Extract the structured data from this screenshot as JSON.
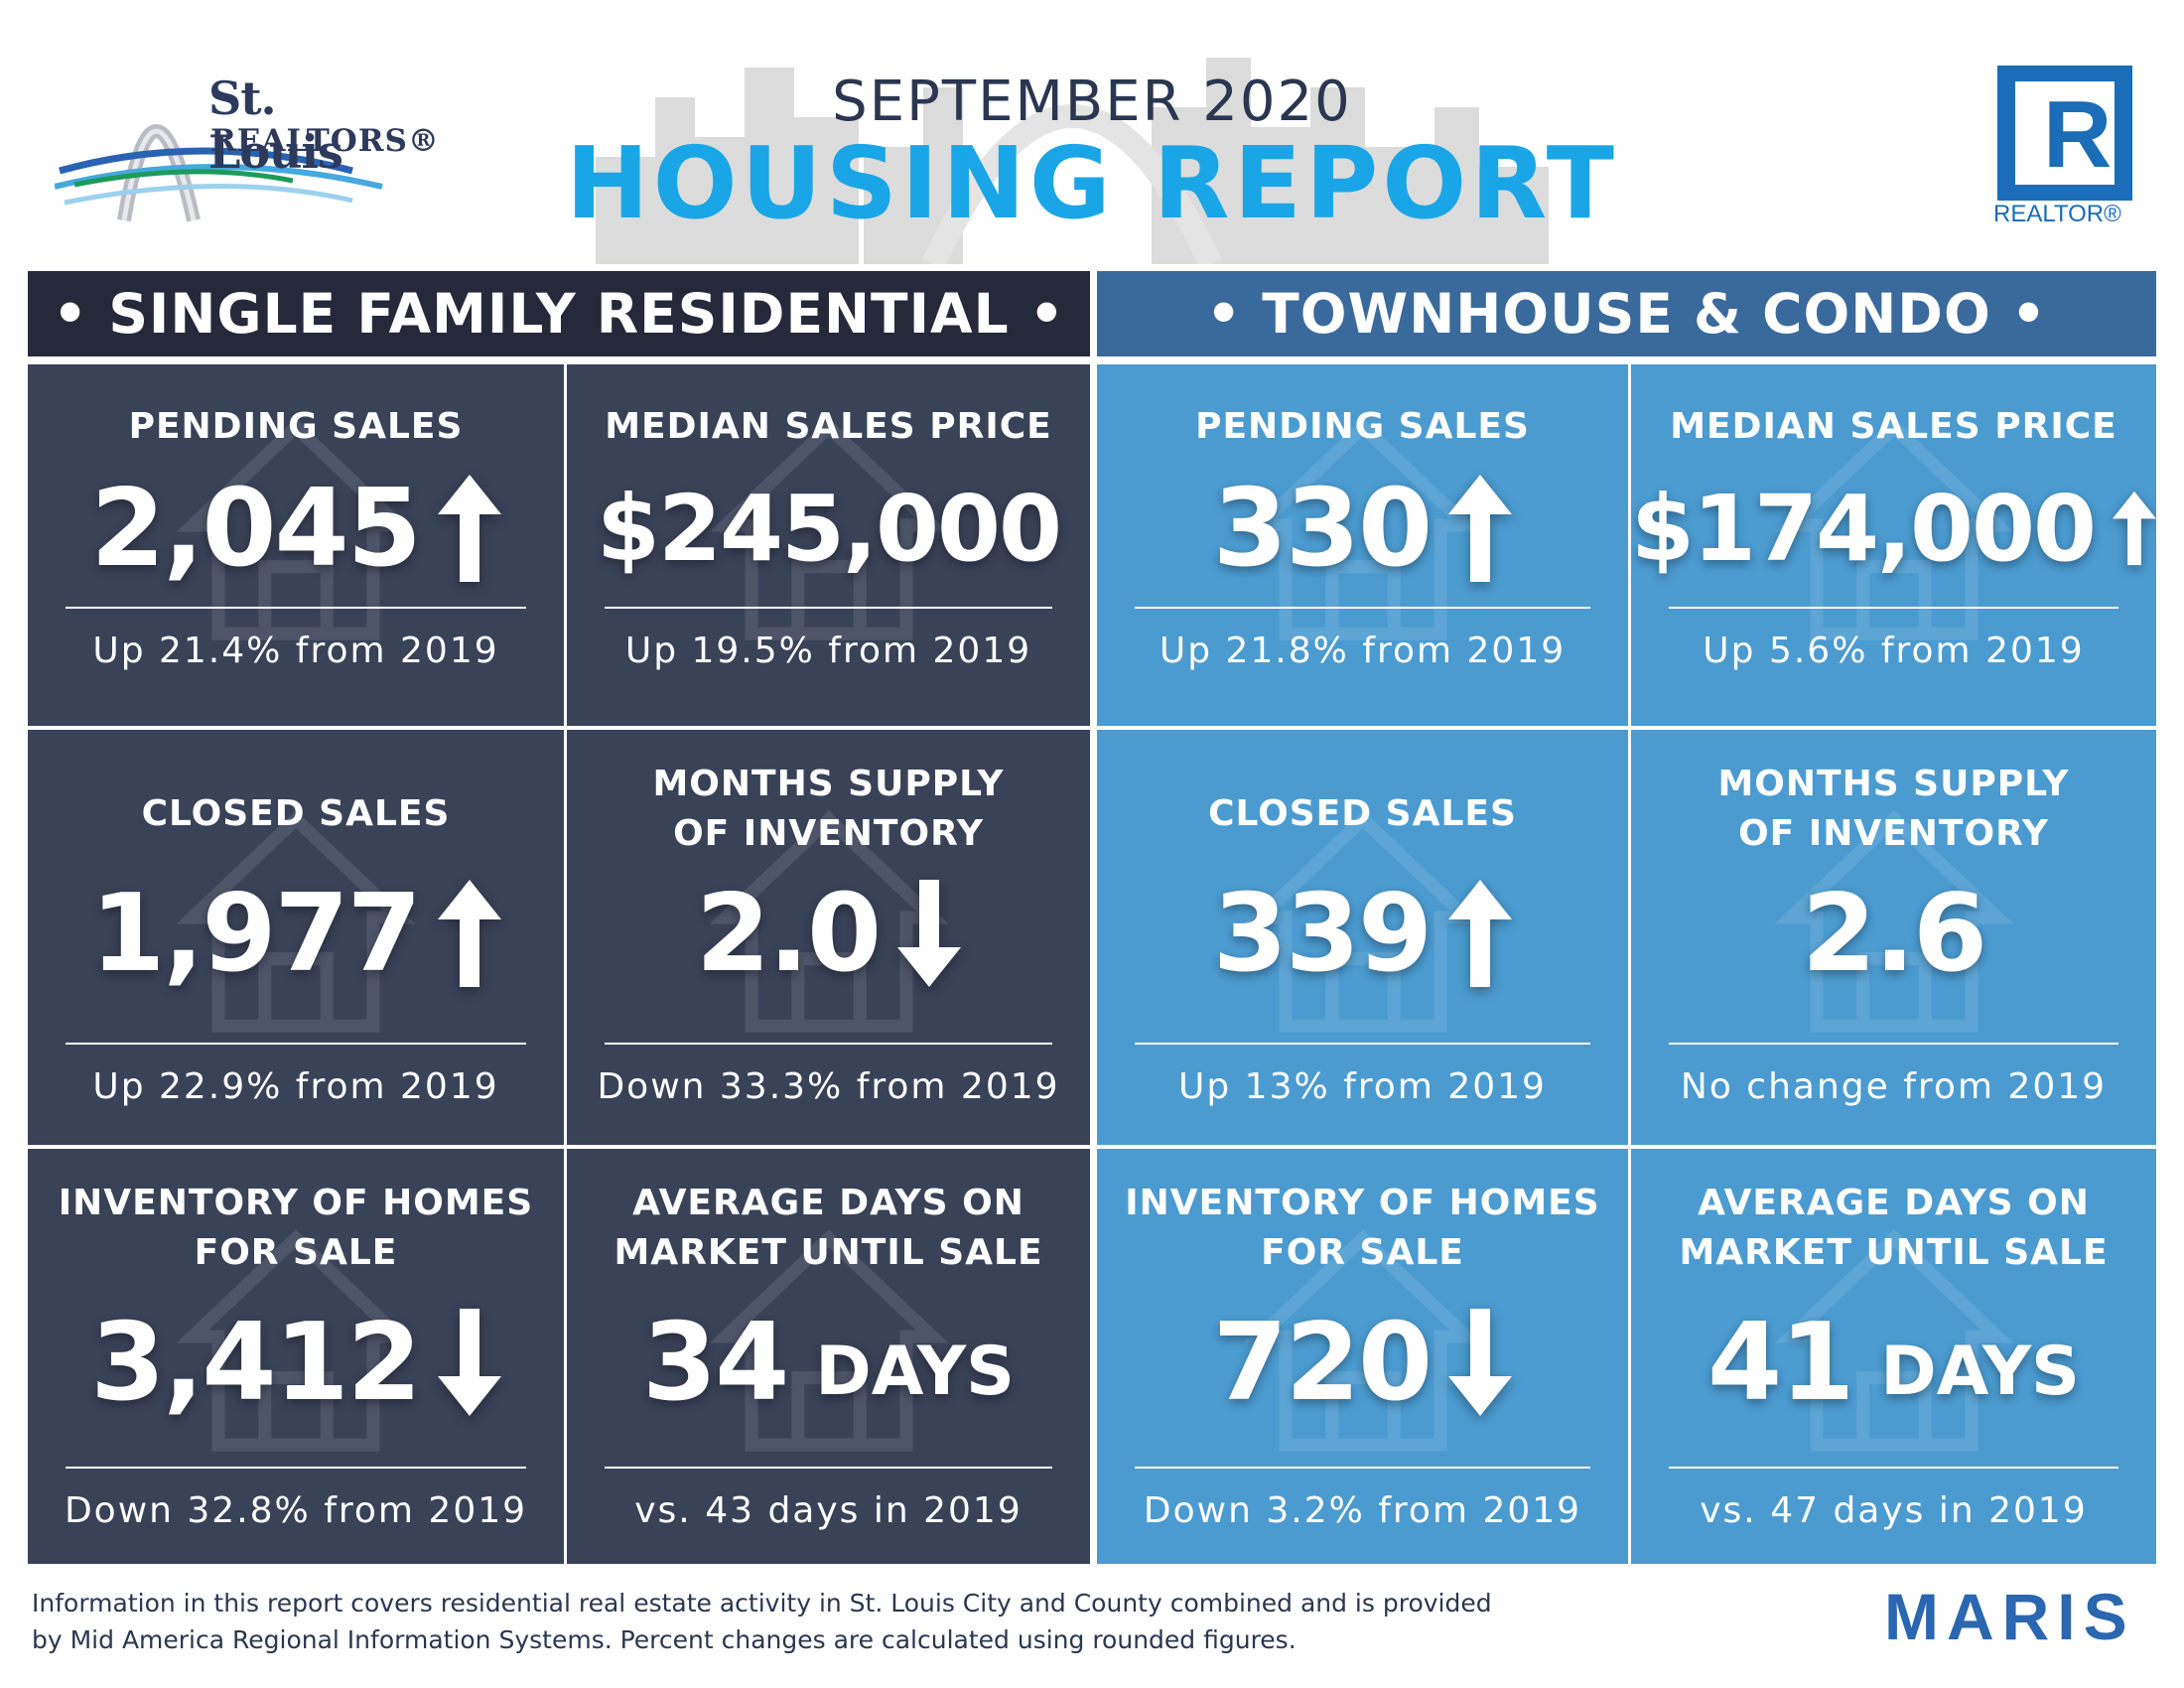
{
  "header": {
    "brand_line1": "St. Louis",
    "brand_line2": "REALTORS®",
    "month": "SEPTEMBER 2020",
    "title": "HOUSING REPORT",
    "realtor_letter": "R",
    "realtor_text": "REALTOR®"
  },
  "sections": {
    "single_family": "• SINGLE FAMILY RESIDENTIAL •",
    "townhouse": "• TOWNHOUSE & CONDO •"
  },
  "tiles": [
    {
      "label1": "PENDING SALES",
      "label2": "",
      "value": "2,045",
      "unit": "",
      "trend": "up",
      "change": "Up 21.4% from 2019"
    },
    {
      "label1": "MEDIAN SALES PRICE",
      "label2": "",
      "value": "$245,000",
      "unit": "",
      "trend": "none",
      "change": "Up 19.5% from 2019"
    },
    {
      "label1": "PENDING SALES",
      "label2": "",
      "value": "330",
      "unit": "",
      "trend": "up",
      "change": "Up 21.8% from 2019"
    },
    {
      "label1": "MEDIAN SALES PRICE",
      "label2": "",
      "value": "$174,000",
      "unit": "",
      "trend": "up",
      "change": "Up 5.6% from 2019"
    },
    {
      "label1": "CLOSED SALES",
      "label2": "",
      "value": "1,977",
      "unit": "",
      "trend": "up",
      "change": "Up 22.9% from 2019"
    },
    {
      "label1": "MONTHS SUPPLY",
      "label2": "OF INVENTORY",
      "value": "2.0",
      "unit": "",
      "trend": "down",
      "change": "Down 33.3% from 2019"
    },
    {
      "label1": "CLOSED SALES",
      "label2": "",
      "value": "339",
      "unit": "",
      "trend": "up",
      "change": "Up 13% from 2019"
    },
    {
      "label1": "MONTHS SUPPLY",
      "label2": "OF INVENTORY",
      "value": "2.6",
      "unit": "",
      "trend": "none",
      "change": "No change from 2019"
    },
    {
      "label1": "INVENTORY OF HOMES",
      "label2": "FOR SALE",
      "value": "3,412",
      "unit": "",
      "trend": "down",
      "change": "Down 32.8% from 2019"
    },
    {
      "label1": "AVERAGE DAYS ON",
      "label2": "MARKET UNTIL SALE",
      "value": "34",
      "unit": "DAYS",
      "trend": "none",
      "change": "vs. 43 days in 2019"
    },
    {
      "label1": "INVENTORY OF HOMES",
      "label2": "FOR SALE",
      "value": "720",
      "unit": "",
      "trend": "down",
      "change": "Down 3.2% from 2019"
    },
    {
      "label1": "AVERAGE DAYS ON",
      "label2": "MARKET UNTIL SALE",
      "value": "41",
      "unit": "DAYS",
      "trend": "none",
      "change": "vs. 47 days in 2019"
    }
  ],
  "footer": {
    "note_line1": "Information in this report covers residential real estate activity in St. Louis City and County combined and is provided",
    "note_line2": "by Mid America Regional Information Systems. Percent changes are calculated using rounded figures.",
    "maris": "MARIS"
  },
  "colors": {
    "dark_tile": "#3a4258",
    "blue_tile": "#4b9bd1",
    "dark_header": "#26293a",
    "blue_header": "#3a6a9c",
    "title_blue": "#1aa6e6",
    "realtor_blue": "#1a6db6"
  },
  "icons": [
    "arch-logo",
    "skyline-graphic",
    "realtor-r-logo",
    "up-arrow-icon",
    "down-arrow-icon",
    "house-ghost-icon"
  ]
}
